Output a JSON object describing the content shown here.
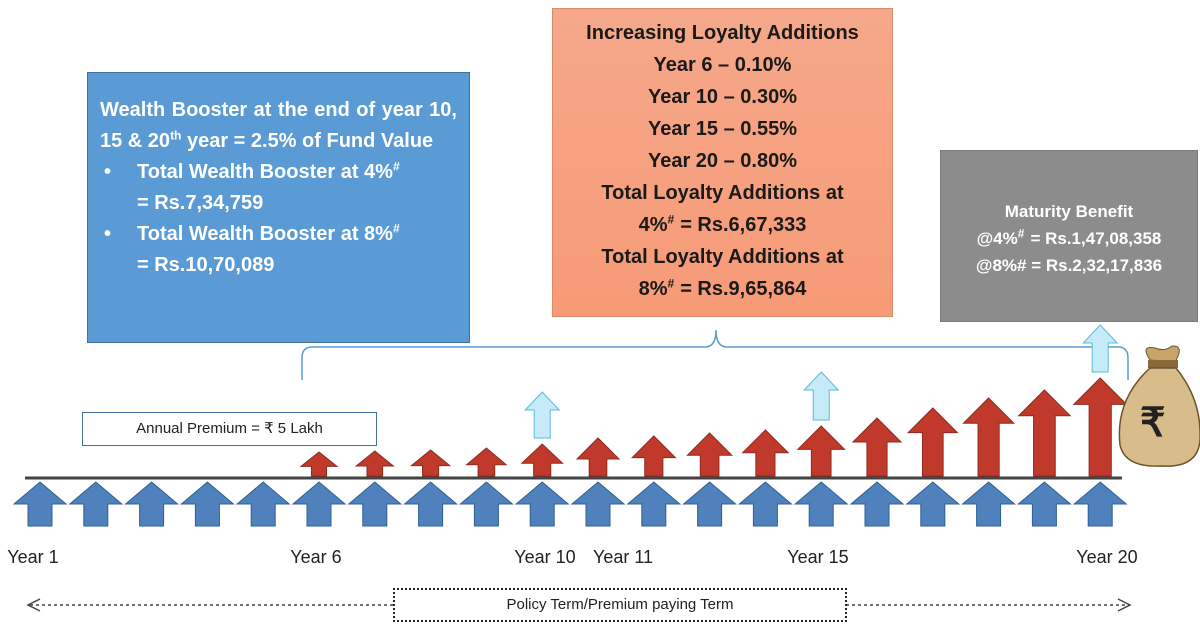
{
  "wealth_booster": {
    "heading": {
      "before": "Wealth Booster at the end of year 10, 15 & 20",
      "sup": "th",
      "after": "year = 2.5% of Fund Value"
    },
    "bullets": [
      {
        "text": "Total Wealth Booster at 4%",
        "sup": "#",
        "amount": "= Rs.7,34,759"
      },
      {
        "text": "Total Wealth Booster at 8%",
        "sup": "#",
        "amount": "= Rs.10,70,089"
      }
    ]
  },
  "loyalty": {
    "title": "Increasing Loyalty Additions",
    "rates": [
      "Year 6 – 0.10%",
      "Year 10 – 0.30%",
      "Year 15 – 0.55%",
      "Year 20 – 0.80%"
    ],
    "totals": [
      {
        "text": "Total Loyalty Additions at",
        "rate": "4%",
        "sup": "#",
        "amount": "= Rs.6,67,333"
      },
      {
        "text": "Total Loyalty Additions at",
        "rate": "8%",
        "sup": "#",
        "amount": "= Rs.9,65,864"
      }
    ]
  },
  "maturity": {
    "title": "Maturity Benefit",
    "line1": {
      "rate": "@4%",
      "sup": "#",
      "amount": "= Rs.1,47,08,358"
    },
    "line2": "@8%# = Rs.2,32,17,836"
  },
  "annual_premium": "Annual Premium = ₹ 5 Lakh",
  "bag_symbol": "₹",
  "years": [
    "Year 1",
    "Year 6",
    "Year 10",
    "Year 11",
    "Year 15",
    "Year 20"
  ],
  "term_label": "Policy Term/Premium paying Term"
}
